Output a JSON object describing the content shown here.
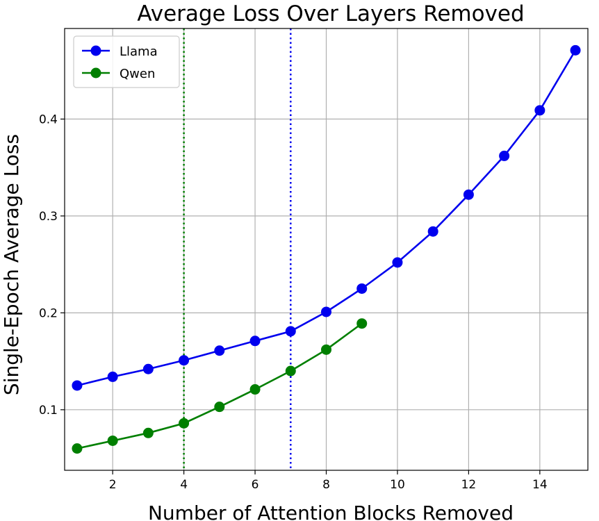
{
  "chart_data": {
    "type": "line",
    "title": "Average Loss Over Layers Removed",
    "xlabel": "Number of Attention Blocks Removed",
    "ylabel": "Single-Epoch Average Loss",
    "xlim": [
      0.65,
      15.35
    ],
    "ylim": [
      0.0375,
      0.4935
    ],
    "xticks": [
      2,
      4,
      6,
      8,
      10,
      12,
      14
    ],
    "yticks": [
      0.1,
      0.2,
      0.3,
      0.4
    ],
    "xtick_labels": [
      "2",
      "4",
      "6",
      "8",
      "10",
      "12",
      "14"
    ],
    "ytick_labels": [
      "0.1",
      "0.2",
      "0.3",
      "0.4"
    ],
    "grid": true,
    "legend_position": "top-left",
    "series": [
      {
        "name": "Llama",
        "color": "#0000ee",
        "x": [
          1,
          2,
          3,
          4,
          5,
          6,
          7,
          8,
          9,
          10,
          11,
          12,
          13,
          14,
          15
        ],
        "values": [
          0.125,
          0.134,
          0.142,
          0.151,
          0.161,
          0.171,
          0.181,
          0.201,
          0.225,
          0.252,
          0.284,
          0.322,
          0.362,
          0.409,
          0.471
        ]
      },
      {
        "name": "Qwen",
        "color": "#007f00",
        "x": [
          1,
          2,
          3,
          4,
          5,
          6,
          7,
          8,
          9
        ],
        "values": [
          0.06,
          0.068,
          0.076,
          0.086,
          0.103,
          0.121,
          0.14,
          0.162,
          0.189
        ]
      }
    ],
    "vertical_lines": [
      {
        "x": 4,
        "color": "#007f00",
        "style": "dotted"
      },
      {
        "x": 7,
        "color": "#0000ee",
        "style": "dotted"
      }
    ]
  }
}
